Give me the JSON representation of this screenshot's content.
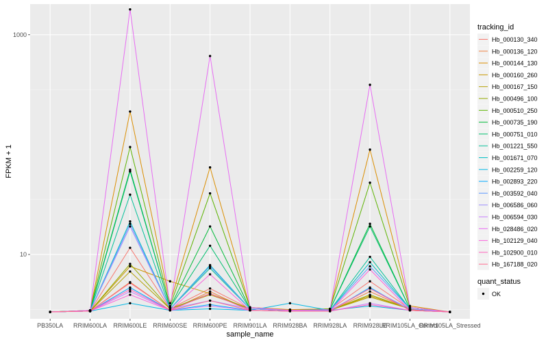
{
  "chart_data": {
    "type": "line",
    "xlabel": "sample_name",
    "ylabel": "FPKM + 1",
    "y_scale": "log10",
    "ylim": [
      2.6,
      1900
    ],
    "y_ticks": [
      10,
      1000
    ],
    "grid": true,
    "legend_placement": "right",
    "categories": [
      "PB350LA",
      "RRIM600LA",
      "RRIM600LE",
      "RRIM600SE",
      "RRIM600PE",
      "RRIM901LA",
      "RRIM928BA",
      "RRIM928LA",
      "RRIM928LE",
      "RRIM105LA_Control",
      "RRIM105LA_Stressed"
    ],
    "legend_title": "tracking_id",
    "series": [
      {
        "name": "Hb_000130_340",
        "color": "#F8766D",
        "values": [
          3,
          3.05,
          11.5,
          3.2,
          4.9,
          3.2,
          3.1,
          3.15,
          5.7,
          3.2,
          3
        ]
      },
      {
        "name": "Hb_000136_120",
        "color": "#F07F40",
        "values": [
          3,
          3.05,
          5.6,
          3.1,
          4.6,
          3.1,
          3.05,
          3.05,
          4.6,
          3.15,
          3
        ]
      },
      {
        "name": "Hb_000144_130",
        "color": "#DB8E00",
        "values": [
          3,
          3.1,
          200,
          3.6,
          62,
          3.3,
          3.15,
          3.2,
          90,
          3.4,
          3
        ]
      },
      {
        "name": "Hb_000160_260",
        "color": "#C99800",
        "values": [
          3,
          3.05,
          7.8,
          5.7,
          4.4,
          3.2,
          3.1,
          3.1,
          4.2,
          3.2,
          3
        ]
      },
      {
        "name": "Hb_000167_150",
        "color": "#B3A000",
        "values": [
          3,
          3.05,
          7,
          3.2,
          4.3,
          3.2,
          3.1,
          3.1,
          4.1,
          3.2,
          3
        ]
      },
      {
        "name": "Hb_000496_100",
        "color": "#94AA00",
        "values": [
          3,
          3.05,
          8.2,
          3.2,
          4.4,
          3.2,
          3.1,
          3.1,
          4.3,
          3.2,
          3
        ]
      },
      {
        "name": "Hb_000510_250",
        "color": "#5CB300",
        "values": [
          3,
          3.1,
          95,
          3.4,
          36,
          3.3,
          3.1,
          3.2,
          45,
          3.3,
          3
        ]
      },
      {
        "name": "Hb_000735_190",
        "color": "#00BA38",
        "values": [
          3,
          3.1,
          59,
          3.3,
          18,
          3.2,
          3.1,
          3.15,
          19,
          3.2,
          3
        ]
      },
      {
        "name": "Hb_000751_010",
        "color": "#00BF6E",
        "values": [
          3,
          3.05,
          57,
          3.3,
          12,
          3.2,
          3.1,
          3.15,
          18,
          3.2,
          3
        ]
      },
      {
        "name": "Hb_001221_550",
        "color": "#00C098",
        "values": [
          3,
          3.05,
          35,
          3.2,
          7.5,
          3.2,
          3.1,
          3.1,
          9.5,
          3.2,
          3
        ]
      },
      {
        "name": "Hb_001671_070",
        "color": "#00BFC4",
        "values": [
          3,
          3.05,
          20,
          3.2,
          8,
          3.2,
          3.1,
          3.1,
          8.5,
          3.2,
          3
        ]
      },
      {
        "name": "Hb_002259_120",
        "color": "#00B8E5",
        "values": [
          3,
          3.05,
          3.6,
          3.1,
          3.2,
          3.1,
          3.6,
          3.1,
          3.4,
          3.1,
          3
        ]
      },
      {
        "name": "Hb_002893_220",
        "color": "#00A9FF",
        "values": [
          3,
          3.05,
          5,
          3.1,
          3.5,
          3.1,
          3.05,
          3.05,
          5,
          3.1,
          3
        ]
      },
      {
        "name": "Hb_003592_040",
        "color": "#619CFF",
        "values": [
          3,
          3.05,
          19,
          3.2,
          7.8,
          3.2,
          3.1,
          3.1,
          7.8,
          3.2,
          3
        ]
      },
      {
        "name": "Hb_006586_060",
        "color": "#9C8DFF",
        "values": [
          3,
          3.05,
          18,
          3.2,
          3.8,
          3.2,
          3.1,
          3.1,
          4.9,
          3.2,
          3
        ]
      },
      {
        "name": "Hb_006594_030",
        "color": "#C77CFF",
        "values": [
          3,
          3.05,
          4.6,
          3.1,
          3.4,
          3.1,
          3.05,
          3.05,
          3.6,
          3.1,
          3
        ]
      },
      {
        "name": "Hb_028486_020",
        "color": "#E76BF3",
        "values": [
          3,
          3.1,
          1700,
          3.3,
          640,
          3.3,
          3.1,
          3.15,
          350,
          3.3,
          3
        ]
      },
      {
        "name": "Hb_102129_040",
        "color": "#FA62DB",
        "values": [
          3,
          3.05,
          4.3,
          3.1,
          6.6,
          3.1,
          3.05,
          3.05,
          7.3,
          3.1,
          3
        ]
      },
      {
        "name": "Hb_102900_010",
        "color": "#FF62BC",
        "values": [
          3,
          3.05,
          4.8,
          3.1,
          4.4,
          3.1,
          3.05,
          3.05,
          3.5,
          3.1,
          3
        ]
      },
      {
        "name": "Hb_167188_020",
        "color": "#FF6C91",
        "values": [
          3,
          3.05,
          5.5,
          3.1,
          3.8,
          3.1,
          3.05,
          3.05,
          4.9,
          3.1,
          3
        ]
      }
    ],
    "shape_legend": {
      "title": "quant_status",
      "items": [
        "OK"
      ]
    }
  }
}
